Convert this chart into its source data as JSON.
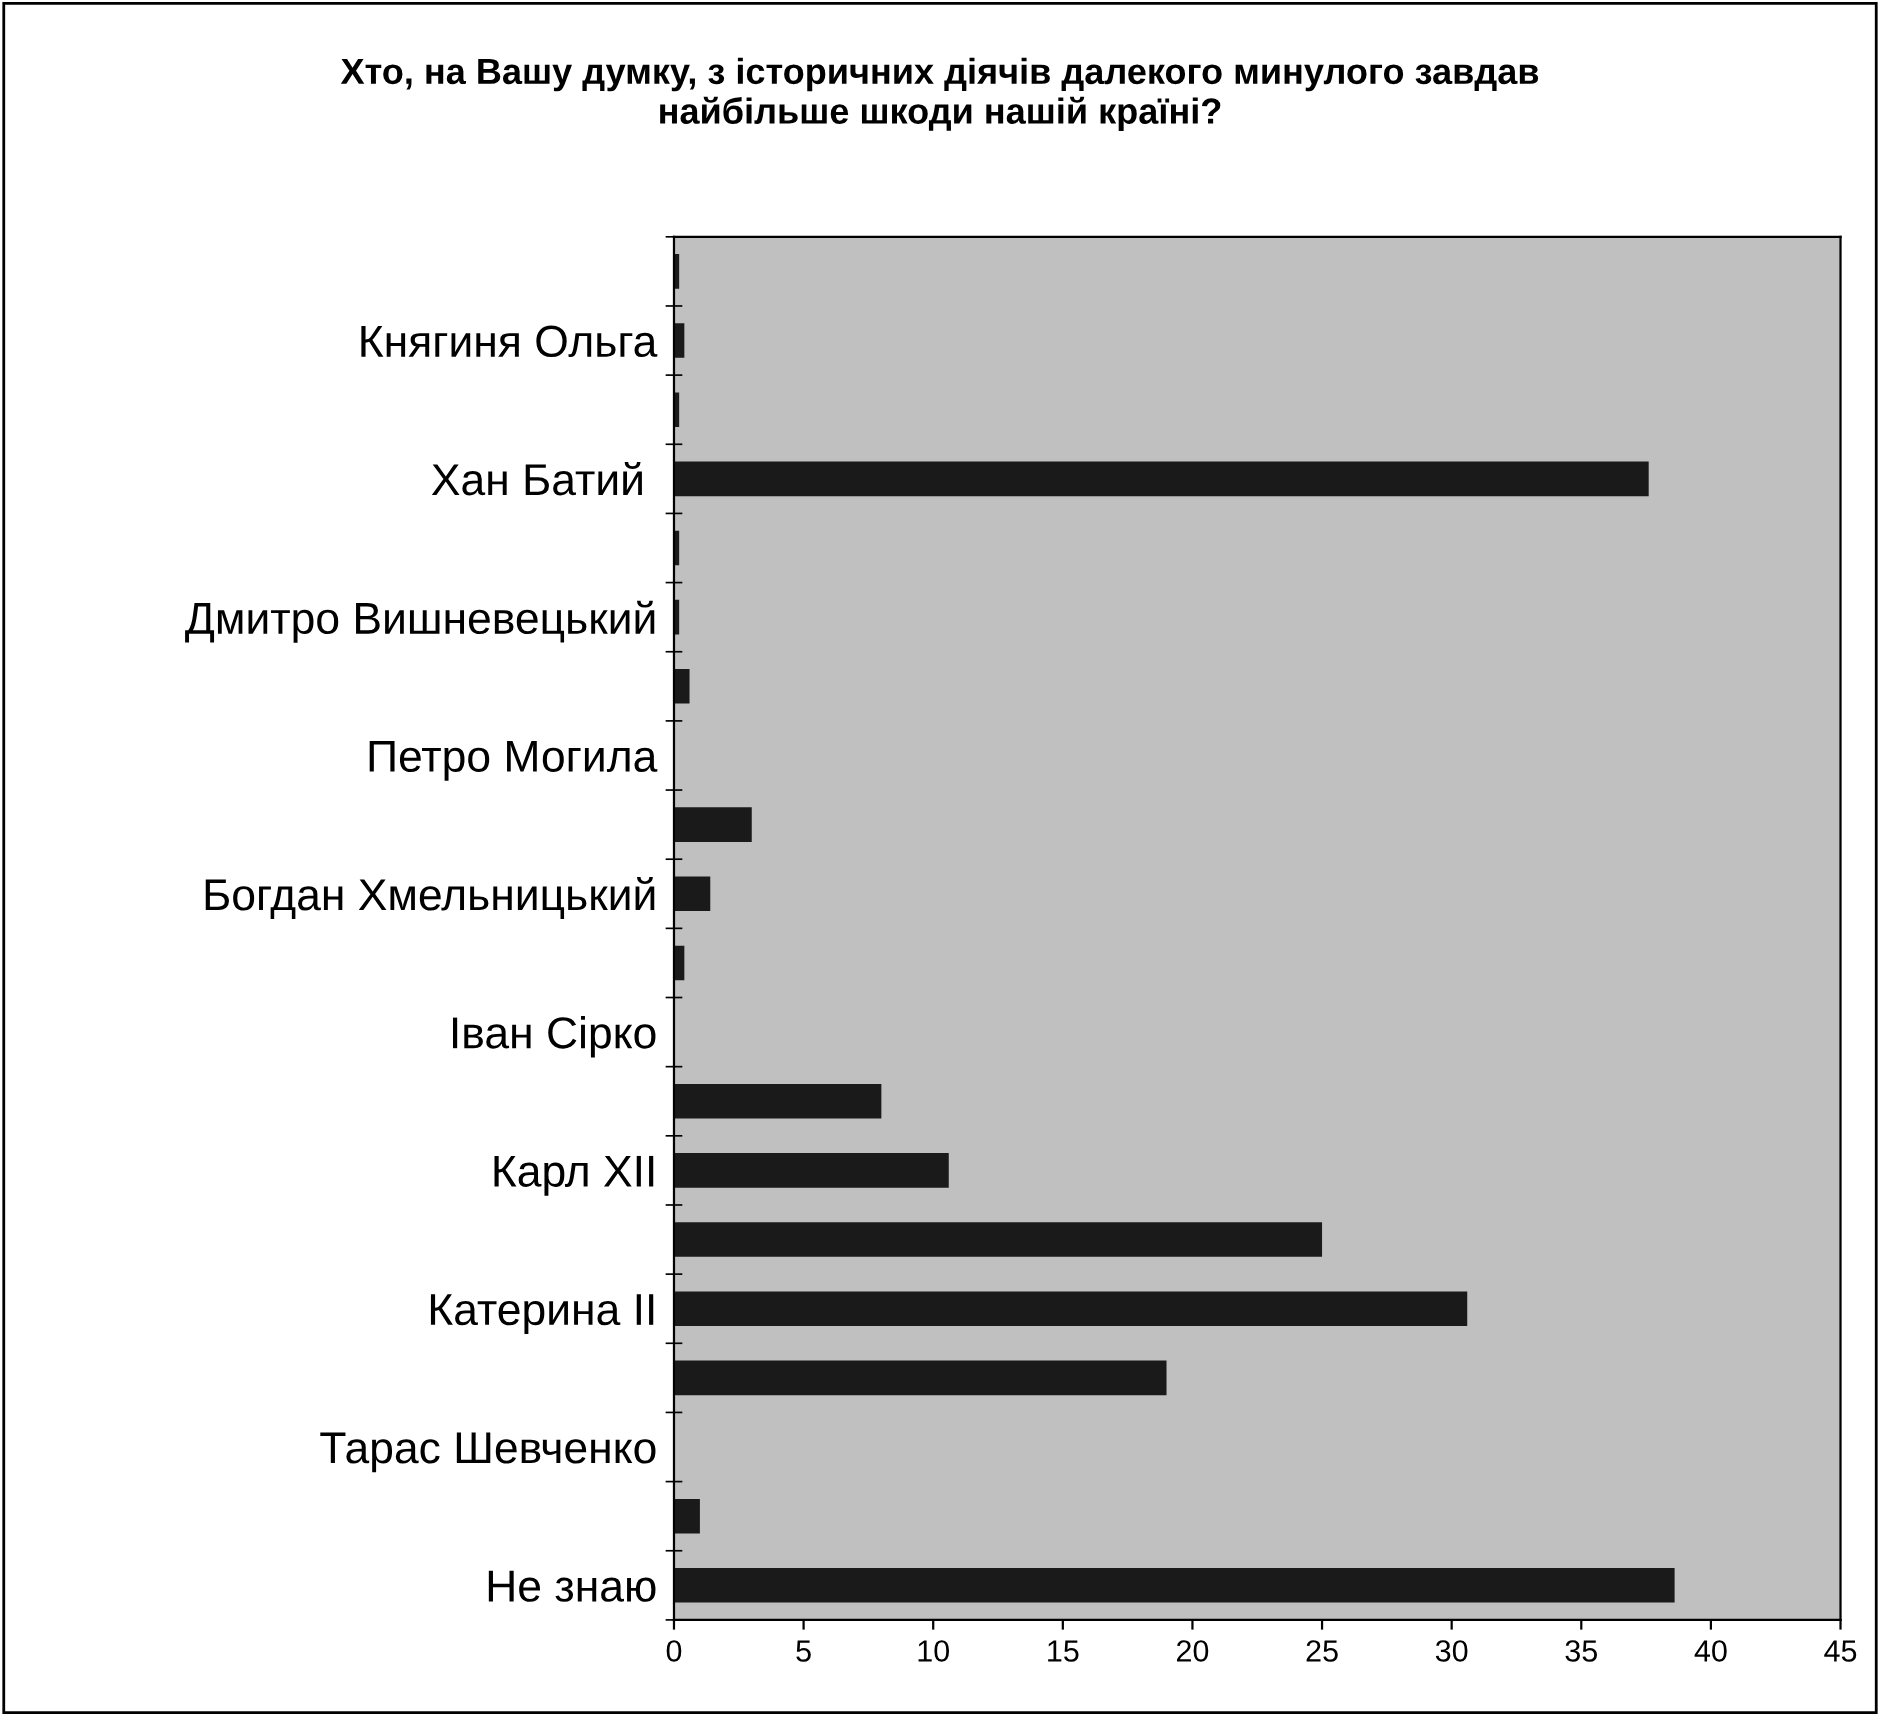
{
  "chart_data": {
    "type": "bar",
    "orientation": "horizontal",
    "title": "Хто, на Вашу думку, з історичних діячів далекого минулого завдав\nнайбільше шкоди нашій країні?",
    "categories": [
      null,
      "Княгиня Ольга",
      null,
      "Хан Батий ",
      null,
      "Дмитро Вишневецький",
      null,
      "Петро Могила",
      null,
      "Богдан Хмельницький",
      null,
      "Іван Сірко",
      null,
      "Карл ХІІ",
      null,
      "Катерина ІІ",
      null,
      "Тарас Шевченко",
      null,
      "Не знаю"
    ],
    "values": [
      0.2,
      0.4,
      0.2,
      37.6,
      0.2,
      0.2,
      0.6,
      0,
      3,
      1.4,
      0.4,
      0,
      8,
      10.6,
      25,
      30.6,
      19,
      0,
      1,
      38.6
    ],
    "color": "#1a1a1a",
    "xlim": [
      0,
      45
    ],
    "xticks": [
      0,
      5,
      10,
      15,
      20,
      25,
      30,
      35,
      40,
      45
    ],
    "grid": false,
    "legend": false
  }
}
